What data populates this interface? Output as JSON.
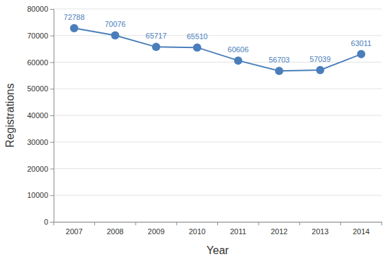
{
  "chart_data": {
    "type": "line",
    "x_label": "Year",
    "y_label": "Registrations",
    "categories": [
      "2007",
      "2008",
      "2009",
      "2010",
      "2011",
      "2012",
      "2013",
      "2014"
    ],
    "values": [
      72788,
      70076,
      65717,
      65510,
      60606,
      56703,
      57039,
      63011
    ],
    "color": "#4a7ebb",
    "marker": "circle",
    "data_labels": true,
    "grid": true,
    "ylim": [
      0,
      80000
    ],
    "yticks": [
      0,
      10000,
      20000,
      30000,
      40000,
      50000,
      60000,
      70000,
      80000
    ]
  }
}
